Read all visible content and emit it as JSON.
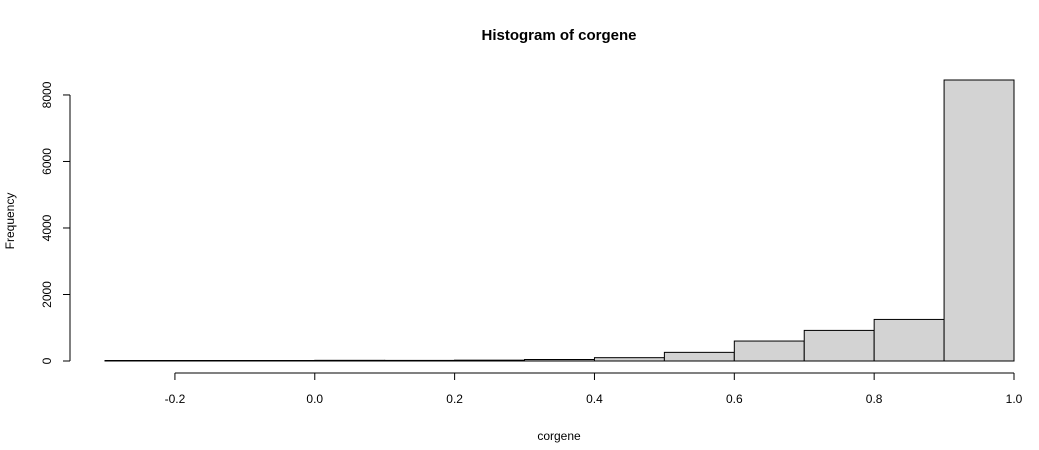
{
  "chart_data": {
    "type": "bar",
    "title": "Histogram of corgene",
    "xlabel": "corgene",
    "ylabel": "Frequency",
    "bin_width": 0.1,
    "bins": [
      {
        "start": -0.3,
        "end": -0.2,
        "value": 5
      },
      {
        "start": -0.2,
        "end": -0.1,
        "value": 3
      },
      {
        "start": -0.1,
        "end": 0.0,
        "value": 4
      },
      {
        "start": 0.0,
        "end": 0.1,
        "value": 20
      },
      {
        "start": 0.1,
        "end": 0.2,
        "value": 18
      },
      {
        "start": 0.2,
        "end": 0.3,
        "value": 25
      },
      {
        "start": 0.3,
        "end": 0.4,
        "value": 45
      },
      {
        "start": 0.4,
        "end": 0.5,
        "value": 100
      },
      {
        "start": 0.5,
        "end": 0.6,
        "value": 260
      },
      {
        "start": 0.6,
        "end": 0.7,
        "value": 600
      },
      {
        "start": 0.7,
        "end": 0.8,
        "value": 920
      },
      {
        "start": 0.8,
        "end": 0.9,
        "value": 1250
      },
      {
        "start": 0.9,
        "end": 1.0,
        "value": 8450
      }
    ],
    "xlim": [
      -0.3,
      1.0
    ],
    "ylim": [
      0,
      8450
    ],
    "x_ticks": [
      -0.2,
      0.0,
      0.2,
      0.4,
      0.6,
      0.8,
      1.0
    ],
    "x_tick_labels": [
      "-0.2",
      "0.0",
      "0.2",
      "0.4",
      "0.6",
      "0.8",
      "1.0"
    ],
    "y_ticks": [
      0,
      2000,
      4000,
      6000,
      8000
    ],
    "y_tick_labels": [
      "0",
      "2000",
      "4000",
      "6000",
      "8000"
    ],
    "grid": false,
    "bar_color": "#d3d3d3",
    "edge_color": "#000000"
  }
}
